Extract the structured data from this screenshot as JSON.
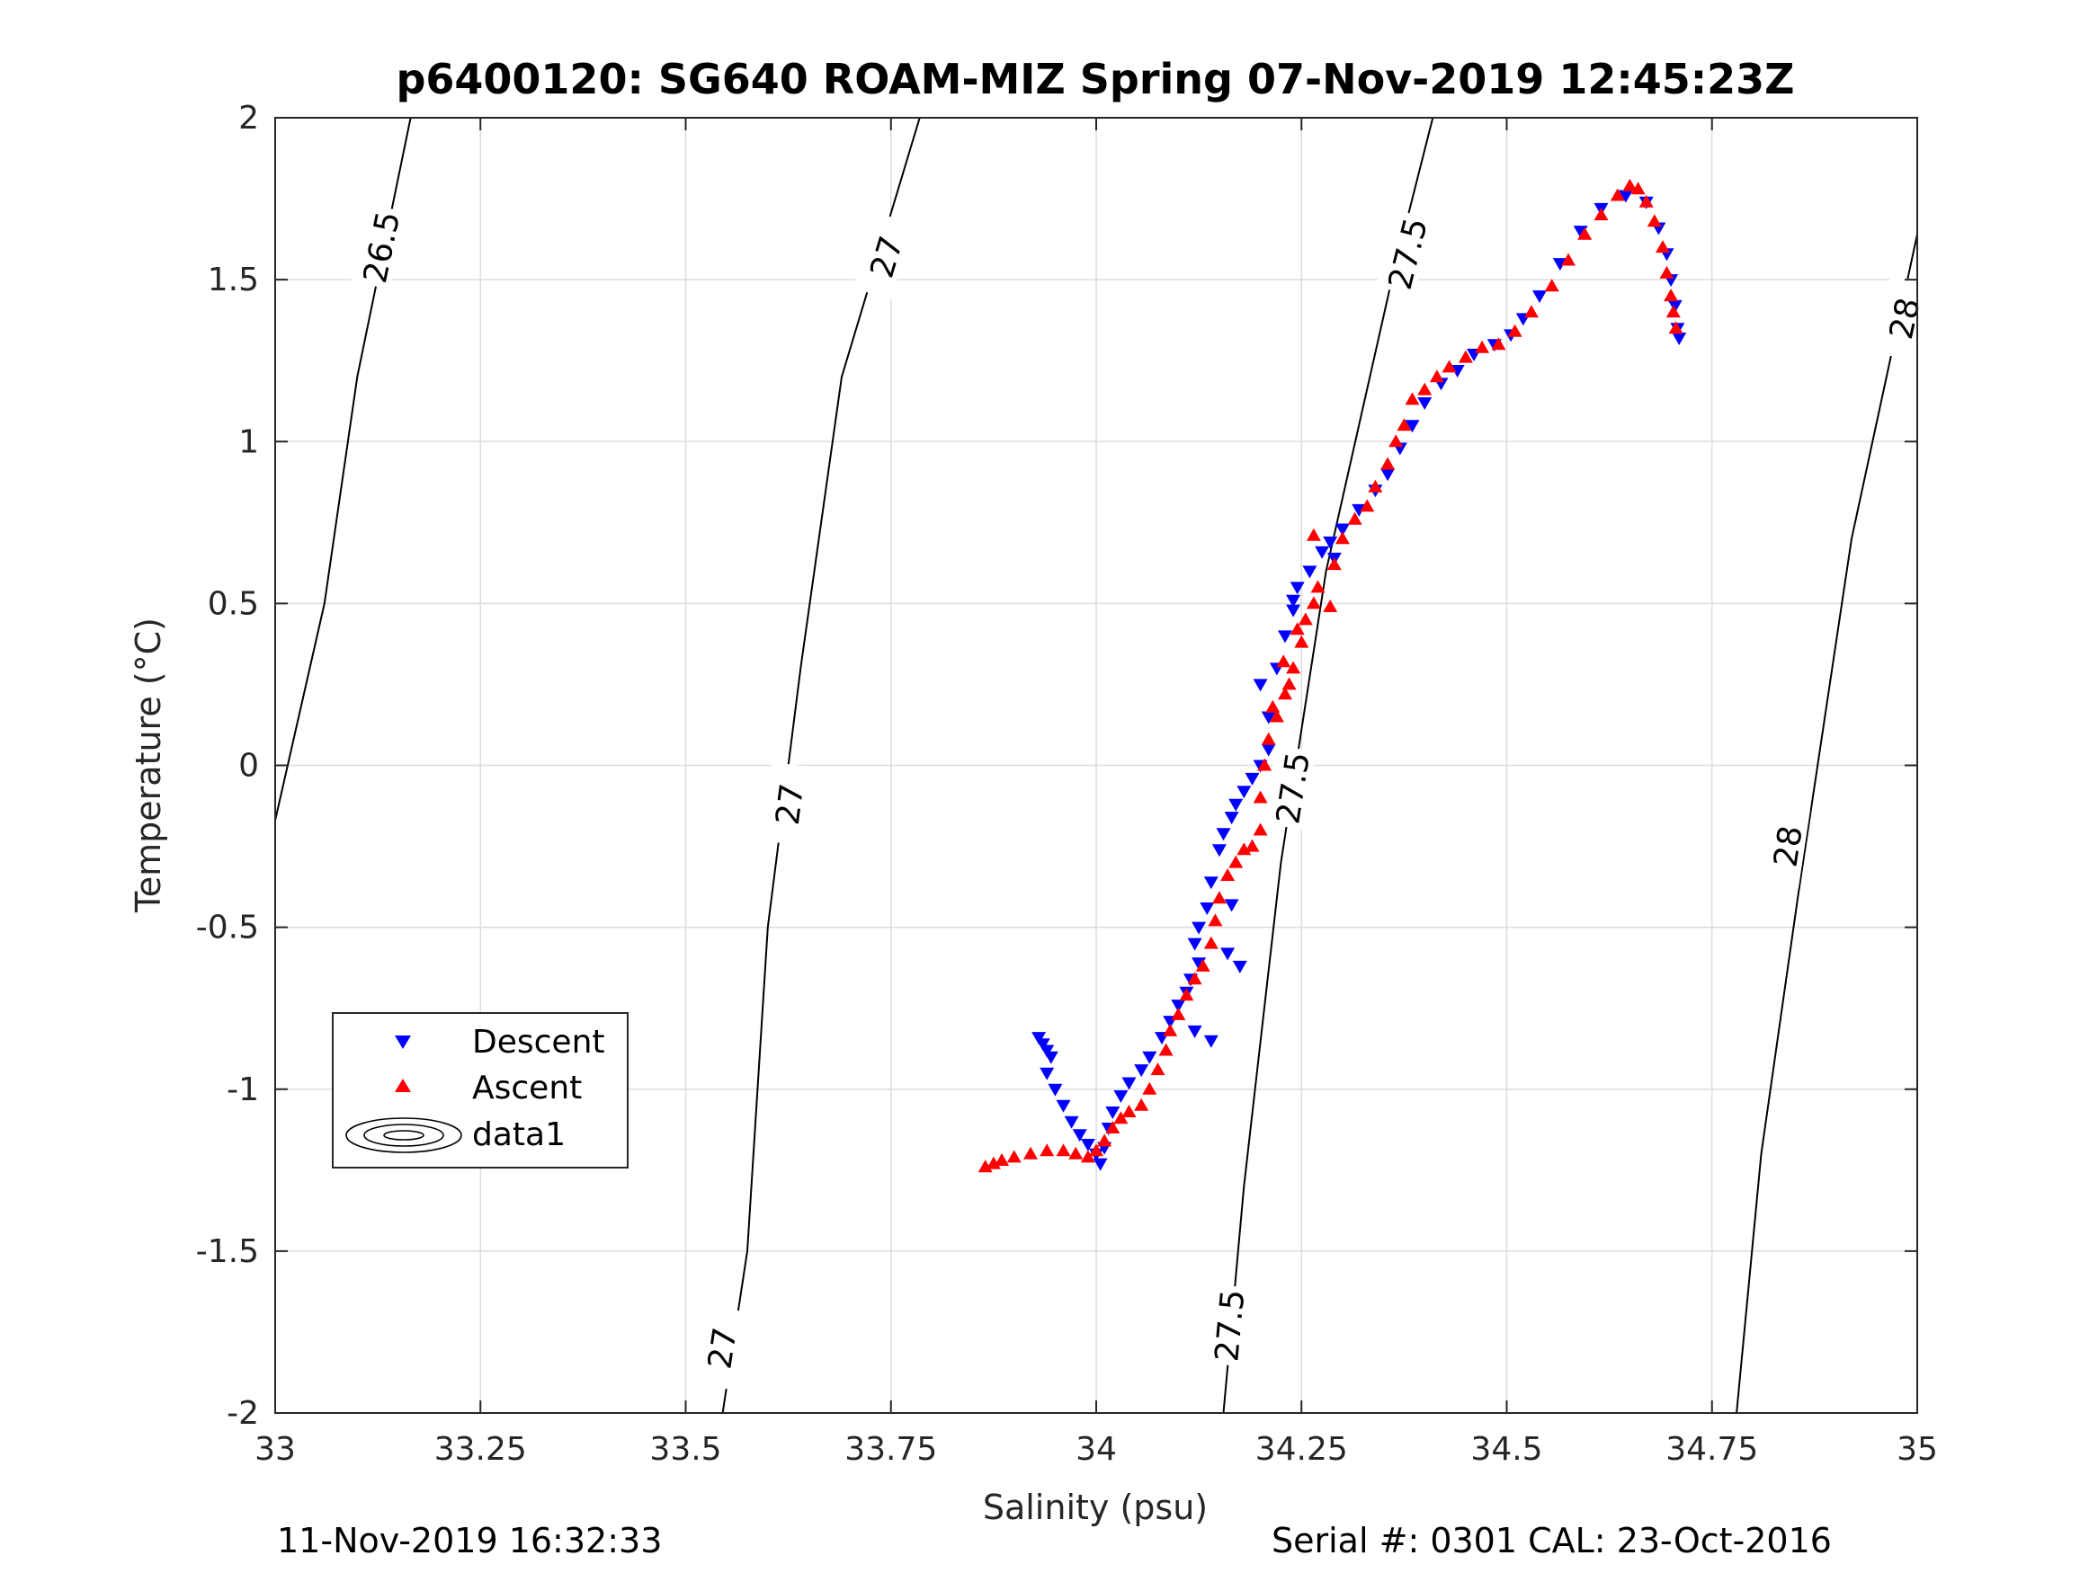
{
  "title": "p6400120: SG640 ROAM-MIZ Spring 07-Nov-2019 12:45:23Z",
  "footer_left": "11-Nov-2019 16:32:33",
  "footer_right": "Serial #: 0301  CAL: 23-Oct-2016",
  "chart_data": {
    "type": "scatter",
    "title": "p6400120: SG640 ROAM-MIZ Spring 07-Nov-2019 12:45:23Z",
    "xlabel": "Salinity (psu)",
    "ylabel": "Temperature (°C)",
    "xlim": [
      33,
      35
    ],
    "ylim": [
      -2,
      2
    ],
    "xticks": [
      33,
      33.25,
      33.5,
      33.75,
      34,
      34.25,
      34.5,
      34.75,
      35
    ],
    "xtick_labels": [
      "33",
      "33.25",
      "33.5",
      "33.75",
      "34",
      "34.25",
      "34.5",
      "34.75",
      "35"
    ],
    "yticks": [
      2,
      1.5,
      1,
      0.5,
      0,
      -0.5,
      -1,
      -1.5,
      -2
    ],
    "ytick_labels": [
      "2",
      "1.5",
      "1",
      "0.5",
      "0",
      "-0.5",
      "-1",
      "-1.5",
      "-2"
    ],
    "grid": true,
    "legend_position": "lower-left",
    "legend": [
      "Descent",
      "Ascent",
      "data1"
    ],
    "colors": {
      "descent": "#0000ff",
      "ascent": "#ff0000",
      "contour": "#000000",
      "grid": "#dcdcdc"
    },
    "contours": [
      {
        "level": "26.5",
        "points": [
          [
            33.0,
            -0.17
          ],
          [
            33.06,
            0.5
          ],
          [
            33.1,
            1.2
          ],
          [
            33.165,
            2.0
          ]
        ],
        "labels": [
          {
            "x": 33.13,
            "y": 1.6
          }
        ]
      },
      {
        "level": "27",
        "points": [
          [
            33.545,
            -2.0
          ],
          [
            33.575,
            -1.5
          ],
          [
            33.6,
            -0.5
          ],
          [
            33.64,
            0.3
          ],
          [
            33.69,
            1.2
          ],
          [
            33.785,
            2.0
          ]
        ],
        "labels": [
          {
            "x": 33.545,
            "y": -1.8
          },
          {
            "x": 33.627,
            "y": -0.12
          },
          {
            "x": 33.745,
            "y": 1.57
          }
        ]
      },
      {
        "level": "27.5",
        "points": [
          [
            34.155,
            -2.0
          ],
          [
            34.18,
            -1.3
          ],
          [
            34.225,
            -0.3
          ],
          [
            34.28,
            0.6
          ],
          [
            34.36,
            1.5
          ],
          [
            34.41,
            2.0
          ]
        ],
        "labels": [
          {
            "x": 34.163,
            "y": -1.73
          },
          {
            "x": 34.24,
            "y": -0.07
          },
          {
            "x": 34.38,
            "y": 1.58
          }
        ]
      },
      {
        "level": "28",
        "points": [
          [
            34.78,
            -2.0
          ],
          [
            34.81,
            -1.2
          ],
          [
            34.855,
            -0.4
          ],
          [
            34.92,
            0.7
          ],
          [
            35.0,
            1.64
          ]
        ],
        "labels": [
          {
            "x": 34.843,
            "y": -0.25
          },
          {
            "x": 34.985,
            "y": 1.38
          }
        ]
      }
    ],
    "series": [
      {
        "name": "Descent",
        "marker": "triangle-down",
        "points": [
          [
            33.93,
            -0.84
          ],
          [
            33.935,
            -0.86
          ],
          [
            33.94,
            -0.88
          ],
          [
            33.945,
            -0.9
          ],
          [
            33.94,
            -0.95
          ],
          [
            33.95,
            -1.0
          ],
          [
            33.96,
            -1.05
          ],
          [
            33.97,
            -1.1
          ],
          [
            33.98,
            -1.14
          ],
          [
            33.99,
            -1.17
          ],
          [
            34.0,
            -1.2
          ],
          [
            34.005,
            -1.23
          ],
          [
            34.01,
            -1.18
          ],
          [
            34.015,
            -1.12
          ],
          [
            34.02,
            -1.07
          ],
          [
            34.03,
            -1.02
          ],
          [
            34.04,
            -0.98
          ],
          [
            34.055,
            -0.94
          ],
          [
            34.065,
            -0.9
          ],
          [
            34.08,
            -0.84
          ],
          [
            34.09,
            -0.79
          ],
          [
            34.1,
            -0.74
          ],
          [
            34.11,
            -0.7
          ],
          [
            34.115,
            -0.66
          ],
          [
            34.125,
            -0.61
          ],
          [
            34.12,
            -0.55
          ],
          [
            34.125,
            -0.5
          ],
          [
            34.135,
            -0.44
          ],
          [
            34.14,
            -0.36
          ],
          [
            34.15,
            -0.26
          ],
          [
            34.155,
            -0.21
          ],
          [
            34.165,
            -0.16
          ],
          [
            34.17,
            -0.12
          ],
          [
            34.18,
            -0.08
          ],
          [
            34.19,
            -0.04
          ],
          [
            34.2,
            0.0
          ],
          [
            34.21,
            0.05
          ],
          [
            34.21,
            0.15
          ],
          [
            34.22,
            0.3
          ],
          [
            34.23,
            0.4
          ],
          [
            34.24,
            0.48
          ],
          [
            34.245,
            0.55
          ],
          [
            34.26,
            0.6
          ],
          [
            34.275,
            0.66
          ],
          [
            34.285,
            0.69
          ],
          [
            34.3,
            0.73
          ],
          [
            34.32,
            0.79
          ],
          [
            34.34,
            0.85
          ],
          [
            34.355,
            0.9
          ],
          [
            34.37,
            0.98
          ],
          [
            34.385,
            1.05
          ],
          [
            34.4,
            1.12
          ],
          [
            34.42,
            1.18
          ],
          [
            34.44,
            1.22
          ],
          [
            34.46,
            1.27
          ],
          [
            34.485,
            1.3
          ],
          [
            34.505,
            1.33
          ],
          [
            34.52,
            1.38
          ],
          [
            34.54,
            1.45
          ],
          [
            34.565,
            1.55
          ],
          [
            34.59,
            1.65
          ],
          [
            34.615,
            1.72
          ],
          [
            34.645,
            1.76
          ],
          [
            34.67,
            1.74
          ],
          [
            34.685,
            1.66
          ],
          [
            34.695,
            1.58
          ],
          [
            34.7,
            1.5
          ],
          [
            34.705,
            1.42
          ],
          [
            34.708,
            1.35
          ],
          [
            34.71,
            1.32
          ],
          [
            34.16,
            -0.58
          ],
          [
            34.175,
            -0.62
          ],
          [
            34.12,
            -0.82
          ],
          [
            34.14,
            -0.85
          ],
          [
            34.165,
            -0.43
          ],
          [
            34.29,
            0.64
          ],
          [
            34.24,
            0.51
          ],
          [
            34.2,
            0.25
          ]
        ]
      },
      {
        "name": "Ascent",
        "marker": "triangle-up",
        "points": [
          [
            33.865,
            -1.24
          ],
          [
            33.875,
            -1.23
          ],
          [
            33.885,
            -1.22
          ],
          [
            33.9,
            -1.21
          ],
          [
            33.92,
            -1.2
          ],
          [
            33.94,
            -1.19
          ],
          [
            33.96,
            -1.19
          ],
          [
            33.975,
            -1.2
          ],
          [
            33.99,
            -1.21
          ],
          [
            34.0,
            -1.19
          ],
          [
            34.01,
            -1.16
          ],
          [
            34.02,
            -1.12
          ],
          [
            34.03,
            -1.09
          ],
          [
            34.04,
            -1.07
          ],
          [
            34.055,
            -1.05
          ],
          [
            34.065,
            -1.0
          ],
          [
            34.075,
            -0.94
          ],
          [
            34.085,
            -0.88
          ],
          [
            34.09,
            -0.82
          ],
          [
            34.1,
            -0.77
          ],
          [
            34.11,
            -0.71
          ],
          [
            34.12,
            -0.66
          ],
          [
            34.13,
            -0.62
          ],
          [
            34.14,
            -0.55
          ],
          [
            34.145,
            -0.48
          ],
          [
            34.15,
            -0.41
          ],
          [
            34.16,
            -0.34
          ],
          [
            34.17,
            -0.3
          ],
          [
            34.18,
            -0.26
          ],
          [
            34.19,
            -0.25
          ],
          [
            34.2,
            -0.2
          ],
          [
            34.2,
            -0.1
          ],
          [
            34.205,
            0.0
          ],
          [
            34.21,
            0.08
          ],
          [
            34.22,
            0.15
          ],
          [
            34.23,
            0.22
          ],
          [
            34.24,
            0.3
          ],
          [
            34.25,
            0.38
          ],
          [
            34.255,
            0.45
          ],
          [
            34.265,
            0.5
          ],
          [
            34.27,
            0.55
          ],
          [
            34.265,
            0.71
          ],
          [
            34.285,
            0.49
          ],
          [
            34.29,
            0.62
          ],
          [
            34.3,
            0.7
          ],
          [
            34.315,
            0.76
          ],
          [
            34.33,
            0.8
          ],
          [
            34.34,
            0.86
          ],
          [
            34.355,
            0.93
          ],
          [
            34.365,
            1.0
          ],
          [
            34.375,
            1.05
          ],
          [
            34.385,
            1.13
          ],
          [
            34.4,
            1.16
          ],
          [
            34.415,
            1.2
          ],
          [
            34.43,
            1.23
          ],
          [
            34.45,
            1.26
          ],
          [
            34.47,
            1.29
          ],
          [
            34.49,
            1.3
          ],
          [
            34.51,
            1.34
          ],
          [
            34.53,
            1.4
          ],
          [
            34.555,
            1.48
          ],
          [
            34.575,
            1.56
          ],
          [
            34.595,
            1.64
          ],
          [
            34.615,
            1.7
          ],
          [
            34.635,
            1.76
          ],
          [
            34.65,
            1.79
          ],
          [
            34.66,
            1.78
          ],
          [
            34.67,
            1.74
          ],
          [
            34.68,
            1.68
          ],
          [
            34.69,
            1.6
          ],
          [
            34.695,
            1.52
          ],
          [
            34.7,
            1.45
          ],
          [
            34.703,
            1.4
          ],
          [
            34.706,
            1.35
          ],
          [
            34.228,
            0.32
          ],
          [
            34.245,
            0.42
          ],
          [
            34.215,
            0.18
          ],
          [
            34.235,
            0.25
          ]
        ]
      }
    ]
  }
}
